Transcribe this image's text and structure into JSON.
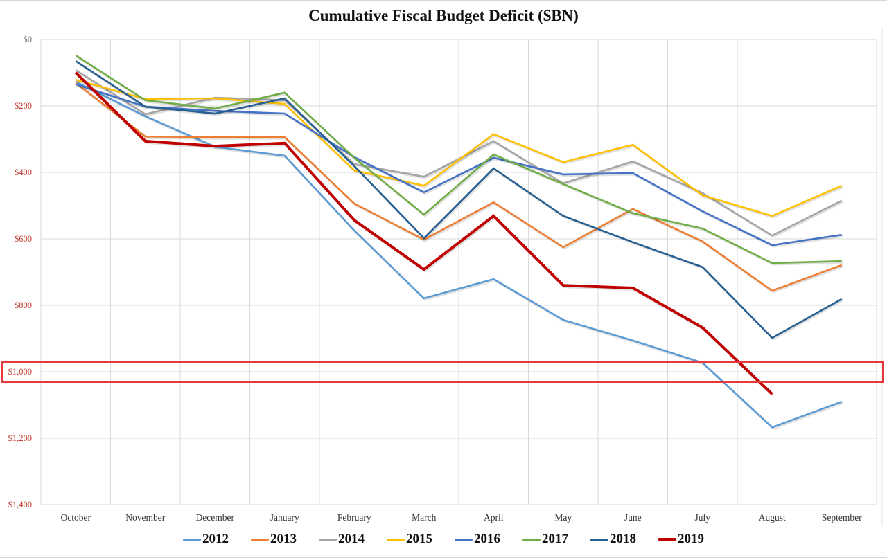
{
  "chart_data": {
    "type": "line",
    "title": "Cumulative Fiscal Budget Deficit ($BN)",
    "xlabel": "",
    "ylabel": "",
    "categories": [
      "October",
      "November",
      "December",
      "January",
      "February",
      "March",
      "April",
      "May",
      "June",
      "July",
      "August",
      "September"
    ],
    "y_axis": {
      "reversed": true,
      "ylim": [
        0,
        1400
      ],
      "ticks": [
        0,
        200,
        400,
        600,
        800,
        1000,
        1200,
        1400
      ],
      "tick_labels": [
        "$0",
        "$200",
        "$400",
        "$600",
        "$800",
        "$1,000",
        "$1,200",
        "$1,400"
      ]
    },
    "grid": true,
    "legend_position": "bottom",
    "annotations": [
      {
        "type": "highlight-box",
        "around_value": 1000,
        "color": "#e83a3a",
        "label": "$1,000"
      }
    ],
    "series": [
      {
        "name": "2012",
        "color": "#5b9bd5",
        "values": [
          127,
          231,
          323,
          350,
          575,
          779,
          721,
          844,
          906,
          973,
          1167,
          1090
        ]
      },
      {
        "name": "2013",
        "color": "#ed7d31",
        "values": [
          131,
          292,
          294,
          294,
          494,
          602,
          490,
          625,
          510,
          608,
          756,
          679
        ]
      },
      {
        "name": "2014",
        "color": "#a5a5a5",
        "values": [
          92,
          225,
          175,
          183,
          375,
          413,
          306,
          433,
          367,
          462,
          590,
          485
        ]
      },
      {
        "name": "2015",
        "color": "#ffc000",
        "values": [
          121,
          179,
          177,
          194,
          394,
          440,
          285,
          369,
          317,
          469,
          531,
          440
        ]
      },
      {
        "name": "2016",
        "color": "#4472c4",
        "values": [
          135,
          202,
          215,
          223,
          354,
          460,
          356,
          406,
          402,
          517,
          619,
          588
        ]
      },
      {
        "name": "2017",
        "color": "#70ad47",
        "values": [
          48,
          183,
          208,
          160,
          356,
          527,
          346,
          435,
          523,
          569,
          673,
          667
        ]
      },
      {
        "name": "2018",
        "color": "#255e91",
        "values": [
          65,
          202,
          223,
          177,
          381,
          598,
          388,
          531,
          610,
          685,
          898,
          781
        ]
      },
      {
        "name": "2019",
        "color": "#c00000",
        "values": [
          100,
          306,
          321,
          312,
          544,
          692,
          531,
          740,
          748,
          867,
          1067,
          null
        ]
      }
    ]
  }
}
